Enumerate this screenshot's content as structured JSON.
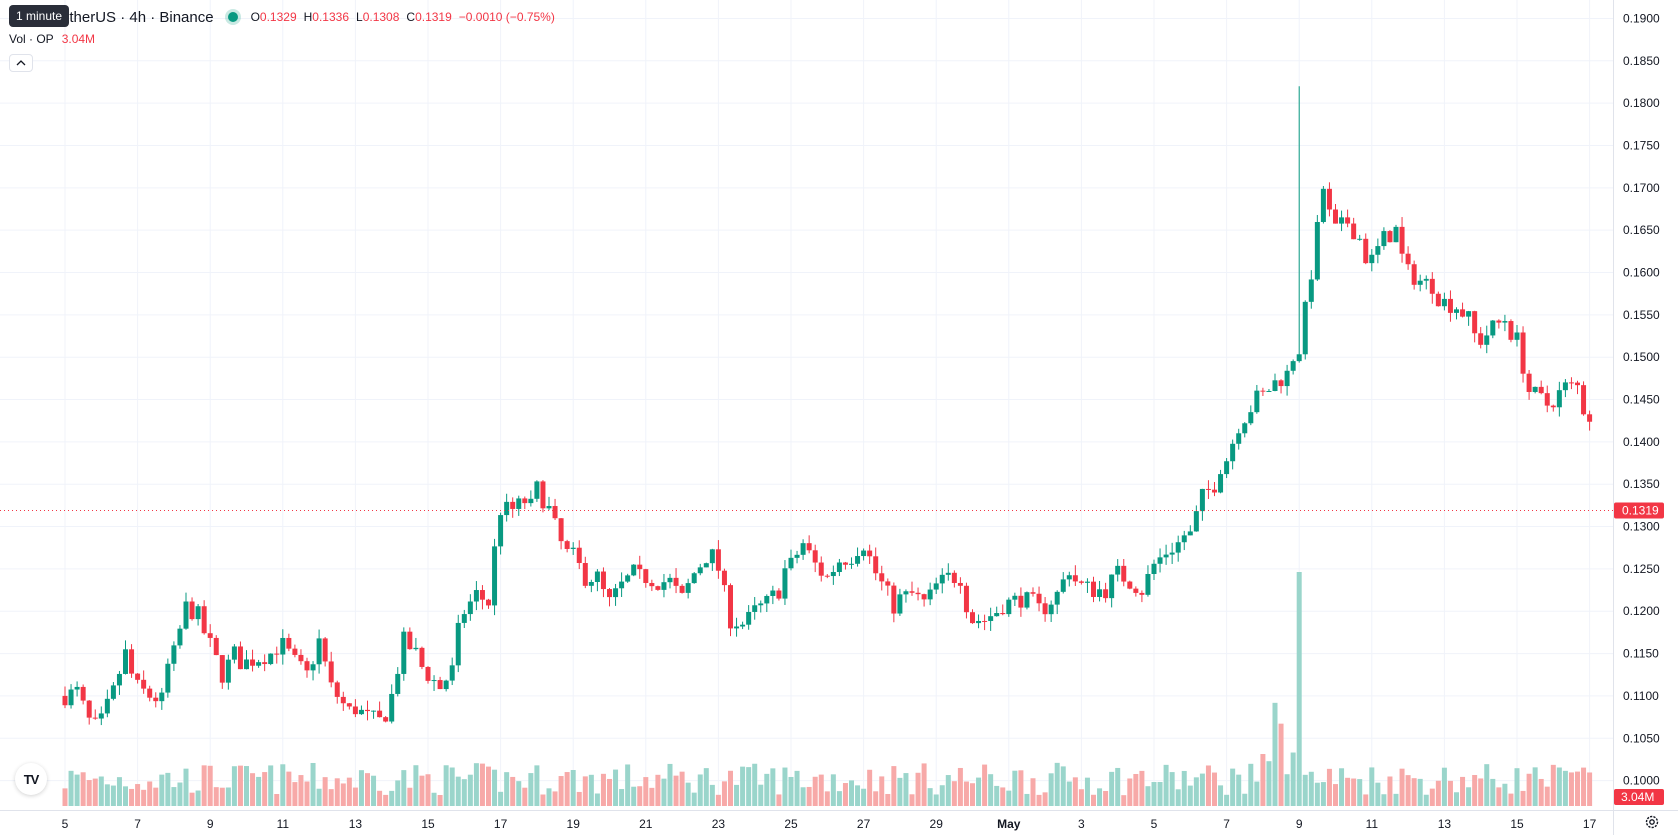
{
  "tooltip": "1 minute",
  "legend": {
    "symbol": "etherUS · 4h · Binance",
    "open_key": "O",
    "open": "0.1329",
    "high_key": "H",
    "high": "0.1336",
    "low_key": "L",
    "low": "0.1308",
    "close_key": "C",
    "close": "0.1319",
    "change": "−0.0010 (−0.75%)"
  },
  "volume_legend": {
    "label": "Vol · OP",
    "value": "3.04M"
  },
  "icons": {
    "collapse": "chevron-up-icon",
    "logo": "tradingview-logo-icon",
    "settings": "gear-icon"
  },
  "colors": {
    "up": "#089981",
    "down": "#f23645",
    "up_volume": "#9ad5cb",
    "down_volume": "#f7a9a8",
    "grid": "#f0f3fa",
    "axis_text": "#131722"
  },
  "chart_data": {
    "type": "candlestick",
    "interval": "4h",
    "exchange": "Binance",
    "price_axis_ticks": [
      "0.1000",
      "0.1050",
      "0.1100",
      "0.1150",
      "0.1200",
      "0.1250",
      "0.1300",
      "0.1350",
      "0.1400",
      "0.1450",
      "0.1500",
      "0.1550",
      "0.1600",
      "0.1650",
      "0.1700",
      "0.1750",
      "0.1800",
      "0.1850",
      "0.1900"
    ],
    "ylim": [
      0.097,
      0.191
    ],
    "time_axis_ticks": [
      "5",
      "7",
      "9",
      "11",
      "13",
      "15",
      "17",
      "19",
      "21",
      "23",
      "25",
      "27",
      "29",
      "May",
      "3",
      "5",
      "7",
      "9",
      "11",
      "13",
      "15",
      "17"
    ],
    "last_price": "0.1319",
    "last_volume": "3.04M",
    "grid": true,
    "daily_anchors": [
      [
        5,
        0.11,
        0.1105,
        0.107,
        0.106
      ],
      [
        6,
        0.107,
        0.1105,
        0.115,
        0.1135
      ],
      [
        7,
        0.111,
        0.11,
        0.1095,
        0.1125
      ],
      [
        8,
        0.115,
        0.1205,
        0.1195,
        0.1185
      ],
      [
        9,
        0.116,
        0.1125,
        0.115,
        0.114
      ],
      [
        10,
        0.114,
        0.1145,
        0.115,
        0.1155
      ],
      [
        11,
        0.116,
        0.114,
        0.1125,
        0.113
      ],
      [
        12,
        0.1165,
        0.111,
        0.109,
        0.108
      ],
      [
        13,
        0.1085,
        0.1075,
        0.107,
        0.1065
      ],
      [
        14,
        0.11,
        0.1165,
        0.115,
        0.114
      ],
      [
        15,
        0.1125,
        0.111,
        0.113,
        0.116
      ],
      [
        16,
        0.12,
        0.122,
        0.121,
        0.124
      ],
      [
        17,
        0.132,
        0.132,
        0.133,
        0.131
      ],
      [
        18,
        0.1345,
        0.132,
        0.128,
        0.127
      ],
      [
        19,
        0.1265,
        0.124,
        0.124,
        0.123
      ],
      [
        20,
        0.121,
        0.123,
        0.1245,
        0.124
      ],
      [
        21,
        0.124,
        0.1235,
        0.1235,
        0.123
      ],
      [
        22,
        0.1215,
        0.1245,
        0.1265,
        0.1275
      ],
      [
        23,
        0.125,
        0.119,
        0.1185,
        0.1185
      ],
      [
        24,
        0.12,
        0.121,
        0.1225,
        0.1245
      ],
      [
        25,
        0.1255,
        0.128,
        0.1255,
        0.125
      ],
      [
        26,
        0.124,
        0.126,
        0.1265,
        0.127
      ],
      [
        27,
        0.128,
        0.1245,
        0.122,
        0.12
      ],
      [
        28,
        0.1215,
        0.122,
        0.121,
        0.121
      ],
      [
        29,
        0.123,
        0.124,
        0.124,
        0.122
      ],
      [
        30,
        0.119,
        0.119,
        0.12,
        0.1205
      ],
      [
        31,
        0.121,
        0.1215,
        0.121,
        0.12
      ],
      [
        32,
        0.1205,
        0.122,
        0.125,
        0.124
      ],
      [
        33,
        0.123,
        0.1225,
        0.1225,
        0.123
      ],
      [
        34,
        0.1245,
        0.1235,
        0.1225,
        0.123
      ],
      [
        35,
        0.1255,
        0.127,
        0.128,
        0.129
      ],
      [
        36,
        0.129,
        0.1335,
        0.135,
        0.1365
      ],
      [
        37,
        0.138,
        0.142,
        0.144,
        0.145
      ],
      [
        38,
        0.1455,
        0.147,
        0.148,
        0.1495
      ],
      [
        39,
        0.151,
        0.16,
        0.17,
        0.168
      ],
      [
        40,
        0.165,
        0.166,
        0.164,
        0.162
      ],
      [
        41,
        0.1615,
        0.164,
        0.165,
        0.163
      ],
      [
        42,
        0.16,
        0.159,
        0.1585,
        0.1575
      ],
      [
        43,
        0.1565,
        0.156,
        0.1545,
        0.153
      ],
      [
        44,
        0.152,
        0.1535,
        0.1545,
        0.1535
      ],
      [
        45,
        0.152,
        0.146,
        0.145,
        0.144
      ],
      [
        46,
        0.145,
        0.1465,
        0.1465,
        0.1445
      ],
      [
        47,
        0.143,
        0.141,
        0.138,
        0.1365
      ],
      [
        48,
        0.1355,
        0.137,
        0.1365,
        0.1319
      ]
    ]
  }
}
